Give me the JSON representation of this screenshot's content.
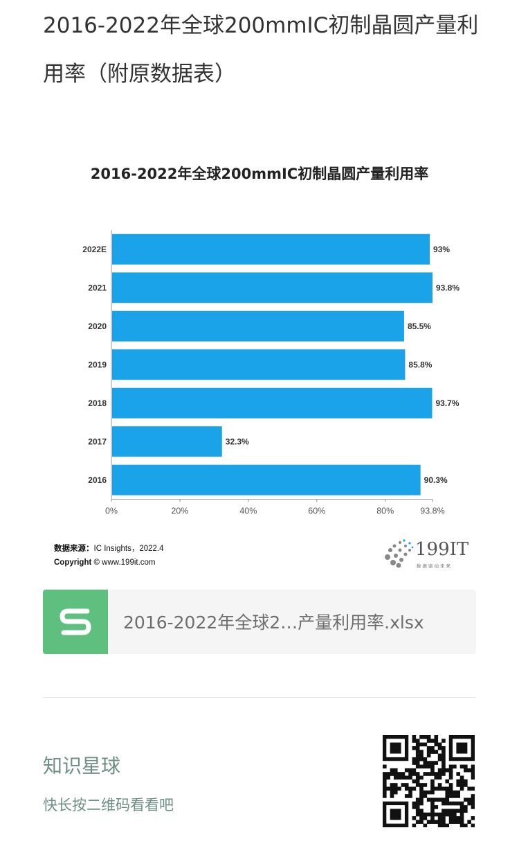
{
  "article": {
    "title": "2016-2022年全球200mmIC初制晶圆产量利用率（附原数据表）"
  },
  "chart_data": {
    "type": "bar",
    "orientation": "horizontal",
    "title": "2016-2022年全球200mmIC初制晶圆产量利用率",
    "categories": [
      "2022E",
      "2021",
      "2020",
      "2019",
      "2018",
      "2017",
      "2016"
    ],
    "values": [
      93,
      93.8,
      85.5,
      85.8,
      93.7,
      32.3,
      90.3
    ],
    "value_labels": [
      "93%",
      "93.8%",
      "85.5%",
      "85.8%",
      "93.7%",
      "32.3%",
      "90.3%"
    ],
    "x_ticks": [
      0,
      20,
      40,
      60,
      80,
      93.8
    ],
    "x_tick_labels": [
      "0%",
      "20%",
      "40%",
      "60%",
      "80%",
      "93.8%"
    ],
    "xlim": [
      0,
      93.8
    ],
    "xlabel": "",
    "ylabel": "",
    "grid": false,
    "bar_color": "#1aa3e8",
    "source_label": "数据来源：",
    "source_text": "IC Insights，2022.4",
    "copyright_label": "Copyright ©",
    "copyright_text": "www.199it.com",
    "logo_text": "199IT",
    "logo_tagline": "数据驱动未来"
  },
  "attachment": {
    "file_name": "2016-2022年全球2…产量利用率.xlsx",
    "icon": "spreadsheet-s-icon",
    "icon_color": "#5fbf7e"
  },
  "footer": {
    "title": "知识星球",
    "subtitle": "快长按二维码看看吧",
    "qr": "qr-code-icon"
  }
}
